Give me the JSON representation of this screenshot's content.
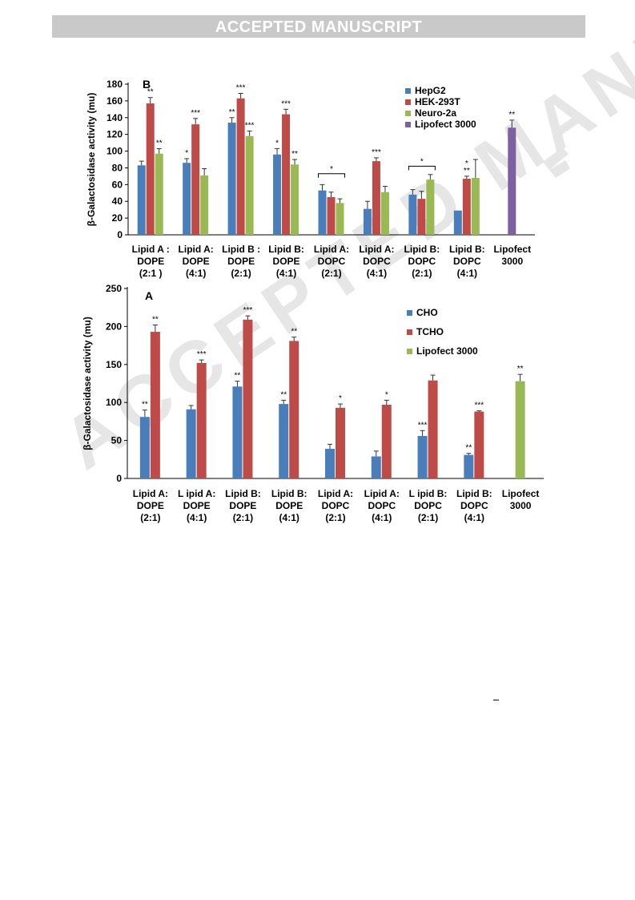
{
  "header": {
    "banner": "ACCEPTED MANUSCRIPT"
  },
  "watermark": {
    "text": "ACCEPTED MANUSCRIPT"
  },
  "chart_data": [
    {
      "panel": "B",
      "type": "bar",
      "ylabel": "β-Galactosidase activity (mu)",
      "ylim": [
        0,
        180
      ],
      "yticks": [
        0,
        20,
        40,
        60,
        80,
        100,
        120,
        140,
        160,
        180
      ],
      "categories": [
        [
          "Lipid A :",
          "DOPE",
          "(2:1 )"
        ],
        [
          "Lipid A:",
          "DOPE",
          "(4:1)"
        ],
        [
          "Lipid B :",
          "DOPE",
          "(2:1)"
        ],
        [
          "Lipid B:",
          "DOPE",
          "(4:1)"
        ],
        [
          "Lipid  A:",
          "DOPC",
          "(2:1)"
        ],
        [
          "Lipid A:",
          "DOPC",
          "(4:1)"
        ],
        [
          "Lipid B:",
          "DOPC",
          "(2:1)"
        ],
        [
          "Lipid B:",
          "DOPC",
          "(4:1)"
        ],
        [
          "Lipofect",
          "3000"
        ]
      ],
      "series": [
        {
          "name": "HepG2",
          "color": "#4a7ebb",
          "values": [
            83,
            86,
            134,
            96,
            53,
            31,
            48,
            29,
            null
          ],
          "errors": [
            5,
            5,
            6,
            7,
            7,
            9,
            6,
            0,
            null
          ],
          "stars": [
            "",
            "*",
            "**",
            "*",
            "",
            "",
            "",
            "",
            ""
          ]
        },
        {
          "name": "HEK-293T",
          "color": "#be4b48",
          "values": [
            157,
            132,
            163,
            144,
            45,
            88,
            43,
            67,
            null
          ],
          "errors": [
            7,
            7,
            6,
            6,
            6,
            4,
            9,
            3,
            null
          ],
          "stars": [
            "**",
            "***",
            "***",
            "***",
            "",
            "***",
            "",
            "**",
            ""
          ]
        },
        {
          "name": "Neuro-2a",
          "color": "#98b954",
          "values": [
            97,
            71,
            118,
            84,
            38,
            51,
            66,
            68,
            null
          ],
          "errors": [
            6,
            8,
            6,
            6,
            5,
            7,
            6,
            22,
            null
          ],
          "stars": [
            "**",
            "",
            "***",
            "**",
            "",
            "",
            "",
            "",
            ""
          ]
        },
        {
          "name": "Lipofect 3000",
          "color": "#7d60a0",
          "values": [
            null,
            null,
            null,
            null,
            null,
            null,
            null,
            null,
            128
          ],
          "errors": [
            null,
            null,
            null,
            null,
            null,
            null,
            null,
            null,
            9
          ],
          "stars": [
            "",
            "",
            "",
            "",
            "",
            "",
            "",
            "",
            "**"
          ]
        }
      ],
      "brackets": [
        {
          "category": 4,
          "label": "*"
        },
        {
          "category": 6,
          "label": "*"
        }
      ],
      "extra_marks": [
        {
          "category": 7,
          "series": 1,
          "label": "*"
        }
      ],
      "legend": "top-right",
      "grid": false
    },
    {
      "panel": "A",
      "type": "bar",
      "ylabel": "β-Galactosidase activity (mu)",
      "ylim": [
        0,
        250
      ],
      "yticks": [
        0,
        50,
        100,
        150,
        200,
        250
      ],
      "categories": [
        [
          "Lipid A:",
          "DOPE",
          "(2:1)"
        ],
        [
          "L ipid A:",
          "DOPE",
          "(4:1)"
        ],
        [
          "Lipid B:",
          "DOPE",
          "(2:1)"
        ],
        [
          "Lipid B:",
          "DOPE",
          "(4:1)"
        ],
        [
          "Lipid  A:",
          "DOPC",
          "(2:1)"
        ],
        [
          "Lipid  A:",
          "DOPC",
          "(4:1)"
        ],
        [
          "L ipid B:",
          "DOPC",
          "(2:1)"
        ],
        [
          "Lipid  B:",
          "DOPC",
          "(4:1)"
        ],
        [
          "Lipofect",
          "3000"
        ]
      ],
      "series": [
        {
          "name": "CHO",
          "color": "#4a7ebb",
          "values": [
            81,
            91,
            121,
            98,
            39,
            29,
            56,
            31,
            null
          ],
          "errors": [
            9,
            5,
            7,
            5,
            6,
            7,
            7,
            2,
            null
          ],
          "stars": [
            "**",
            "",
            "**",
            "**",
            "",
            "",
            "***",
            "**",
            ""
          ]
        },
        {
          "name": "TCHO",
          "color": "#be4b48",
          "values": [
            193,
            152,
            209,
            181,
            93,
            97,
            129,
            88,
            null
          ],
          "errors": [
            9,
            4,
            5,
            5,
            5,
            6,
            7,
            1,
            null
          ],
          "stars": [
            "**",
            "***",
            "***",
            "**",
            "*",
            "*",
            "",
            "***",
            ""
          ]
        },
        {
          "name": "Lipofect 3000",
          "color": "#98b954",
          "values": [
            null,
            null,
            null,
            null,
            null,
            null,
            null,
            null,
            128
          ],
          "errors": [
            null,
            null,
            null,
            null,
            null,
            null,
            null,
            null,
            9
          ],
          "stars": [
            "",
            "",
            "",
            "",
            "",
            "",
            "",
            "",
            "**"
          ]
        }
      ],
      "legend": "top-right",
      "grid": false
    }
  ]
}
